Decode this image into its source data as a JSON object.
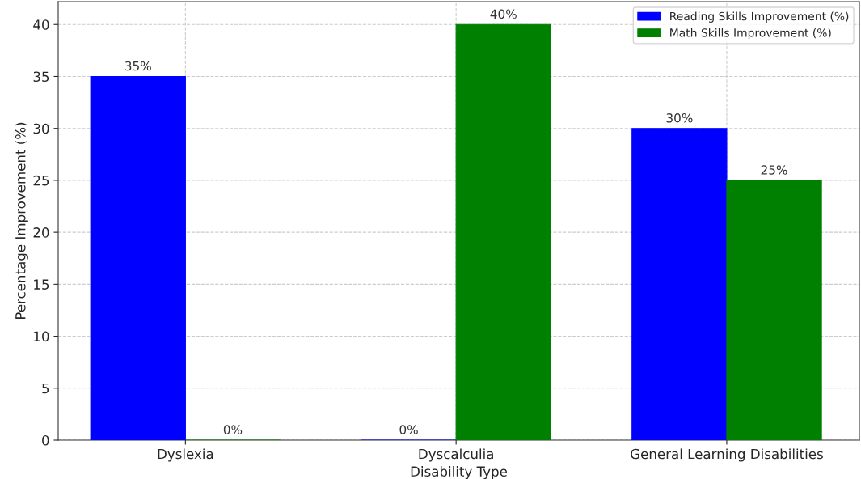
{
  "chart_data": {
    "type": "bar",
    "xlabel": "Disability Type",
    "ylabel": "Percentage Improvement (%)",
    "categories": [
      "Dyslexia",
      "Dyscalculia",
      "General Learning Disabilities"
    ],
    "series": [
      {
        "name": "Reading Skills Improvement (%)",
        "color": "#0000ff",
        "values": [
          35,
          0,
          30
        ],
        "value_labels": [
          "35%",
          "0%",
          "30%"
        ]
      },
      {
        "name": "Math Skills Improvement (%)",
        "color": "#008000",
        "values": [
          0,
          40,
          25
        ],
        "value_labels": [
          "0%",
          "40%",
          "25%"
        ]
      }
    ],
    "ylim": [
      0,
      42.2
    ],
    "yticks": [
      0,
      5,
      10,
      15,
      20,
      25,
      30,
      35,
      40
    ],
    "grid": true,
    "legend": "top right"
  }
}
